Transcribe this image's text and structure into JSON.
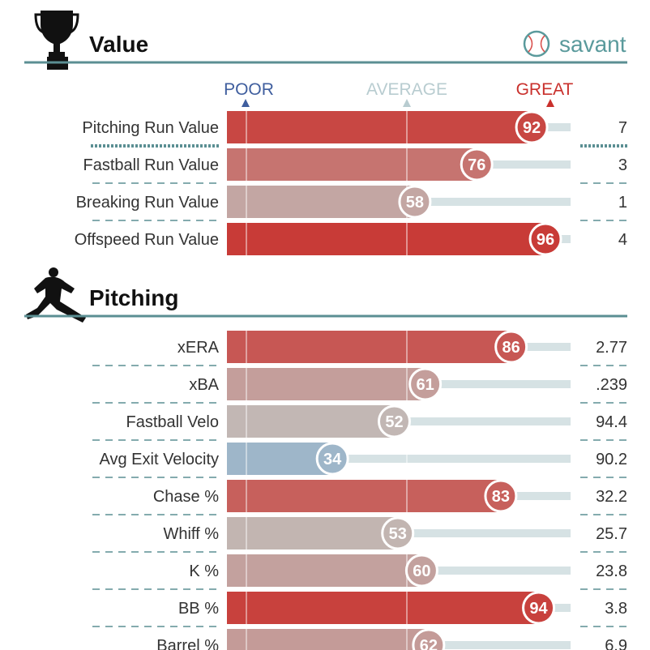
{
  "brand": {
    "name": "savant",
    "color": "#5a9a9c"
  },
  "scale": {
    "poor": "POOR",
    "average": "AVERAGE",
    "great": "GREAT"
  },
  "colors": {
    "poor": "#3f5e9e",
    "average": "#b8ccd0",
    "great": "#c9302c",
    "track": "#d6e2e4",
    "accent": "#5b8f93"
  },
  "chart_data": [
    {
      "type": "bar",
      "title": "Value",
      "icon": "trophy-icon",
      "xlim": [
        0,
        100
      ],
      "categories": [
        "Pitching Run Value",
        "Fastball Run Value",
        "Breaking Run Value",
        "Offspeed Run Value"
      ],
      "percentiles": [
        92,
        76,
        58,
        96
      ],
      "values": [
        "7",
        "3",
        "1",
        "4"
      ]
    },
    {
      "type": "bar",
      "title": "Pitching",
      "icon": "pitcher-icon",
      "xlim": [
        0,
        100
      ],
      "categories": [
        "xERA",
        "xBA",
        "Fastball Velo",
        "Avg Exit Velocity",
        "Chase %",
        "Whiff %",
        "K %",
        "BB %",
        "Barrel %"
      ],
      "percentiles": [
        86,
        61,
        52,
        34,
        83,
        53,
        60,
        94,
        62
      ],
      "values": [
        "2.77",
        ".239",
        "94.4",
        "90.2",
        "32.2",
        "25.7",
        "23.8",
        "3.8",
        "6.9"
      ]
    }
  ]
}
